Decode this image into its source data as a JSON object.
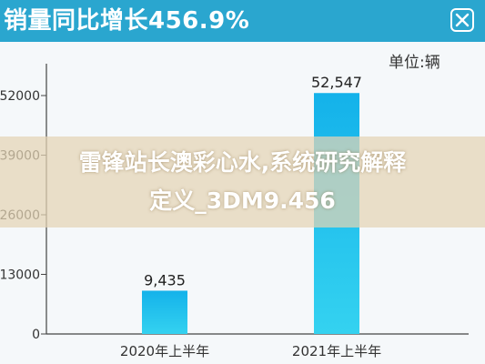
{
  "header": {
    "title": "销量同比增长456.9%",
    "close_icon": "close-icon"
  },
  "colors": {
    "header_bg": "#2aa6cf",
    "bar_top": "#14b4ec",
    "bar_bottom": "#2fd0f0",
    "overlay": "#e5d4b4"
  },
  "chart_data": {
    "type": "bar",
    "unit_label": "单位:辆",
    "categories": [
      "2020年上半年",
      "2021年上半年"
    ],
    "values": [
      9435,
      52547
    ],
    "value_labels": [
      "9,435",
      "52,547"
    ],
    "yticks": [
      0,
      13000,
      26000,
      39000,
      52000
    ],
    "ytick_labels": [
      "0",
      "13000",
      "26000",
      "39000",
      "52000"
    ],
    "ylim": [
      0,
      52000
    ],
    "grid": false,
    "legend": "none"
  },
  "overlay": {
    "line1": "雷锋站长澳彩心水,系统研究解释",
    "line2": "定义_3DM9.456"
  }
}
